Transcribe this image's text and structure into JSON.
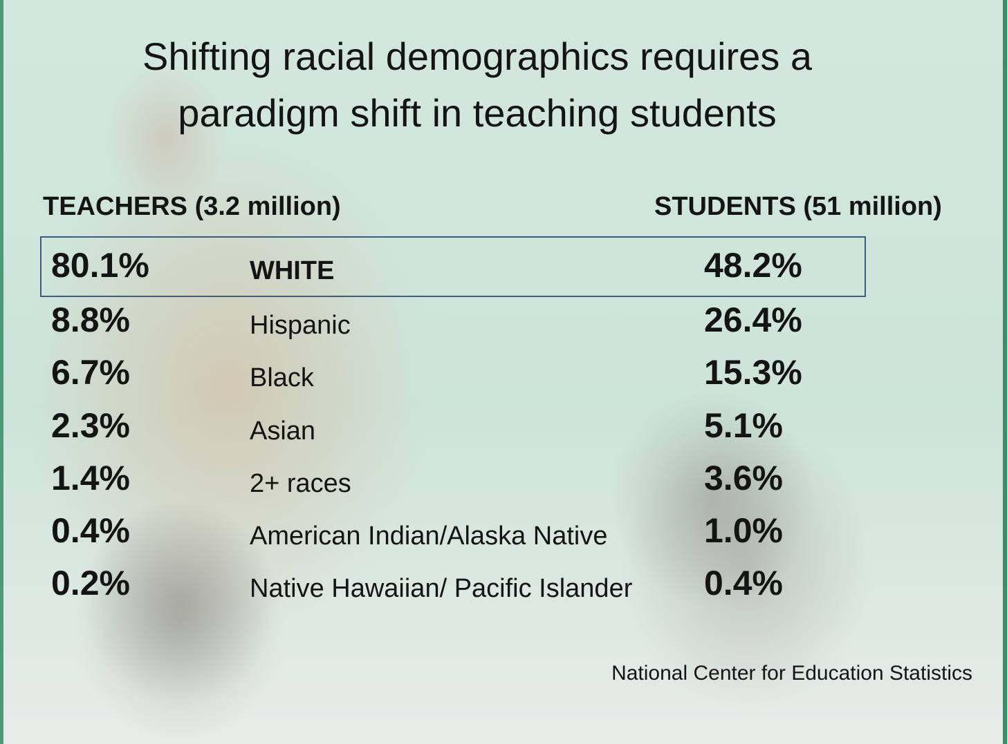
{
  "slide": {
    "title_line1": "Shifting racial demographics requires a",
    "title_line2": "paradigm shift in teaching students",
    "teachers_header": "TEACHERS (3.2 million)",
    "students_header": "STUDENTS (51 million)",
    "source": "National Center for Education Statistics"
  },
  "rows": [
    {
      "teachers": "80.1%",
      "group": "WHITE",
      "students": "48.2%"
    },
    {
      "teachers": "8.8%",
      "group": "Hispanic",
      "students": "26.4%"
    },
    {
      "teachers": "6.7%",
      "group": "Black",
      "students": "15.3%"
    },
    {
      "teachers": "2.3%",
      "group": "Asian",
      "students": "5.1%"
    },
    {
      "teachers": "1.4%",
      "group": "2+ races",
      "students": "3.6%"
    },
    {
      "teachers": "0.4%",
      "group": "American Indian/Alaska Native",
      "students": "1.0%"
    },
    {
      "teachers": "0.2%",
      "group": "Native Hawaiian/ Pacific Islander",
      "students": "0.4%"
    }
  ],
  "colors": {
    "text": "#141414",
    "highlight_border": "#3f5a7a",
    "chalkboard": "#cfe3da",
    "edge_green": "#4d9a7a"
  }
}
